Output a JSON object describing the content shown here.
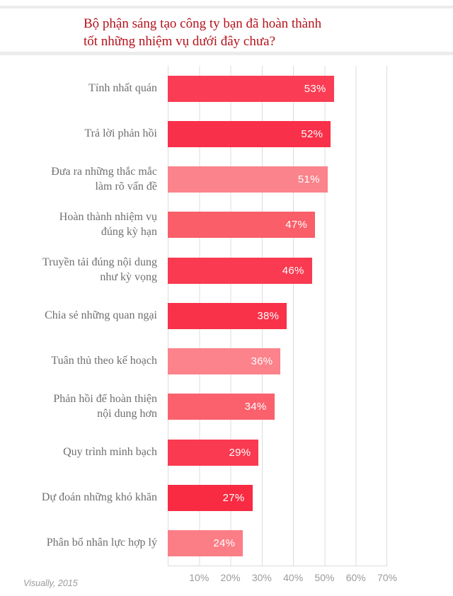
{
  "colors": {
    "title": "#b5121b",
    "category_label": "#6f6f6f",
    "tick_label": "#9b9b9b",
    "footer": "#9a9a9a",
    "grid": "#dcdcdc",
    "divider": "#ececec",
    "bar_value_text": "#ffffff"
  },
  "footer": {
    "source": "Visually, 2015"
  },
  "chart_data": {
    "type": "bar",
    "orientation": "horizontal",
    "title": "Bộ phận sáng tạo công ty bạn đã hoàn thành tốt những nhiệm vụ dưới đây chưa?",
    "title_line1": "Bộ phận sáng tạo công ty bạn đã hoàn thành",
    "title_line2": "tốt những nhiệm vụ dưới đây chưa?",
    "categories": [
      "Tính nhất quán",
      "Trả lời phản hồi",
      "Đưa ra những thắc mắc làm rõ vấn đề",
      "Hoàn thành nhiệm vụ đúng kỳ hạn",
      "Truyền tải đúng nội dung như kỳ vọng",
      "Chia sẻ những quan ngại",
      "Tuân thủ theo kế hoạch",
      "Phản hồi để hoàn thiện nội dung hơn",
      "Quy trình minh bạch",
      "Dự đoán những khó khăn",
      "Phân bổ nhân lực hợp lý"
    ],
    "category_lines": [
      [
        "Tính nhất quán"
      ],
      [
        "Trả lời phản hồi"
      ],
      [
        "Đưa ra những thắc mắc",
        "làm rõ vấn đề"
      ],
      [
        "Hoàn thành nhiệm vụ",
        "đúng kỳ hạn"
      ],
      [
        "Truyền tải đúng nội dung",
        "như kỳ vọng"
      ],
      [
        "Chia sẻ những quan ngại"
      ],
      [
        "Tuân thủ theo kế hoạch"
      ],
      [
        "Phản hồi để hoàn thiện",
        "nội dung hơn"
      ],
      [
        "Quy trình minh bạch"
      ],
      [
        "Dự đoán những khó khăn"
      ],
      [
        "Phân bổ nhân lực hợp lý"
      ]
    ],
    "values": [
      53,
      52,
      51,
      47,
      46,
      38,
      36,
      34,
      29,
      27,
      24
    ],
    "value_labels": [
      "53%",
      "52%",
      "51%",
      "47%",
      "46%",
      "38%",
      "36%",
      "34%",
      "29%",
      "27%",
      "24%"
    ],
    "bar_colors": [
      "#fa3d54",
      "#f93049",
      "#fa838c",
      "#fa5e69",
      "#f93a51",
      "#f93149",
      "#fc828b",
      "#fa616d",
      "#f93a51",
      "#f82b42",
      "#fb7d86"
    ],
    "xlim": [
      0,
      70
    ],
    "x_ticks": [
      "10%",
      "20%",
      "30%",
      "40%",
      "50%",
      "60%",
      "70%"
    ],
    "grid": true,
    "legend": false,
    "source": "Visually, 2015"
  }
}
